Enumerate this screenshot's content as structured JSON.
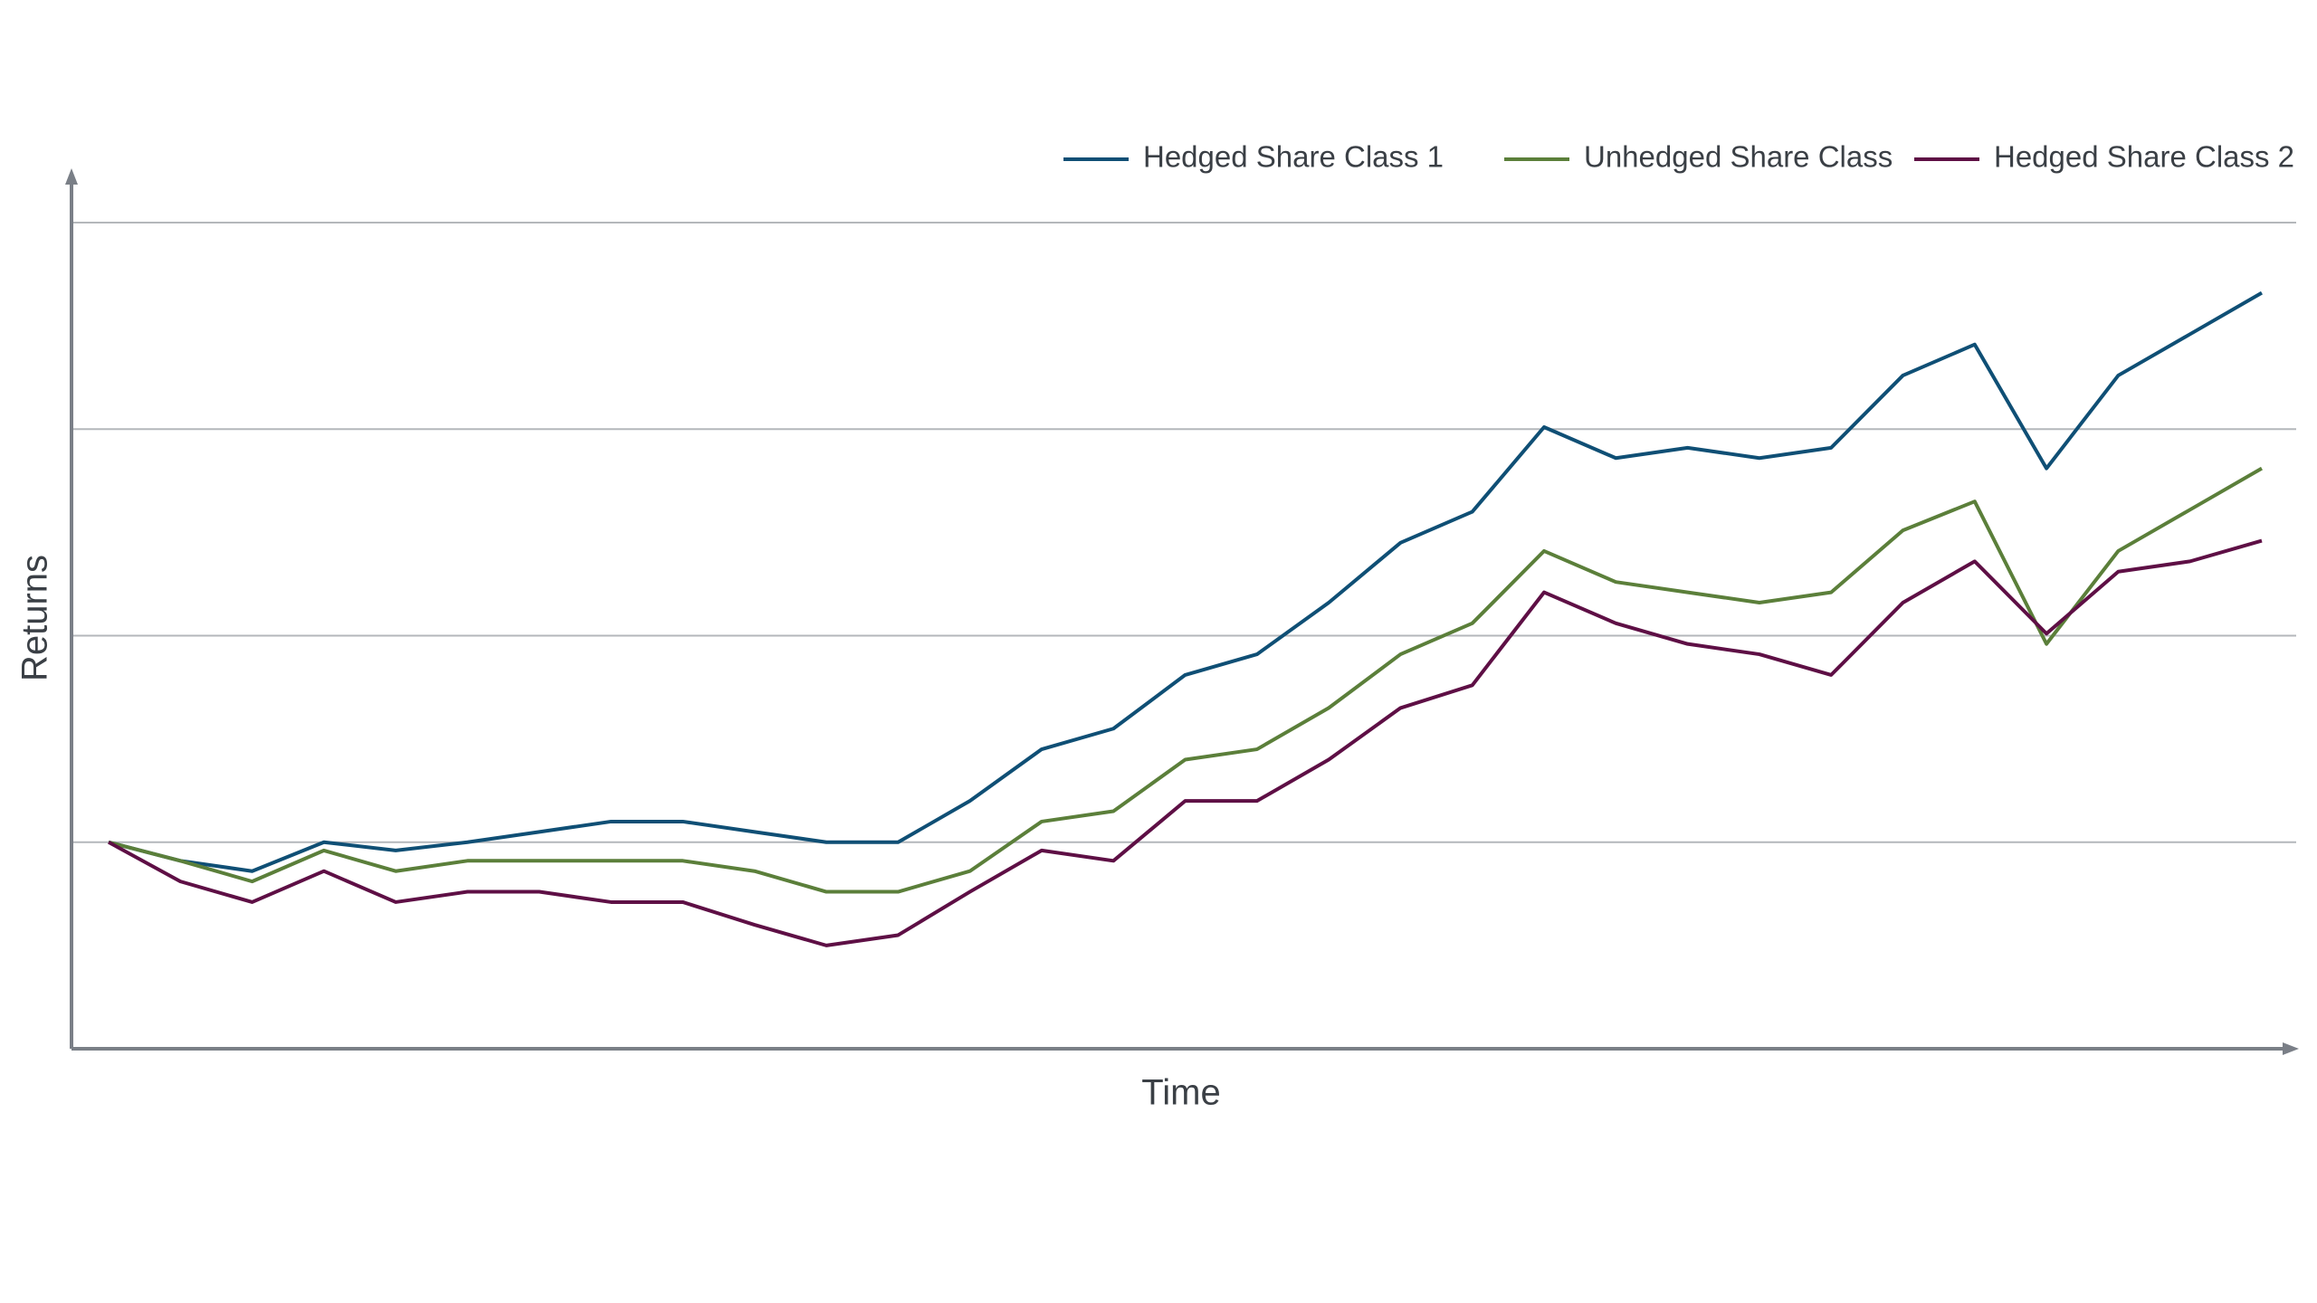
{
  "chart_data": {
    "type": "line",
    "x_label": "Time",
    "y_label": "Returns",
    "categories": [
      null,
      null,
      null,
      null,
      null,
      null,
      null,
      null,
      null,
      null,
      null,
      null,
      null,
      null,
      null,
      null,
      null,
      null,
      null,
      null,
      null,
      null,
      null,
      null,
      null,
      null,
      null,
      null,
      null,
      null,
      null
    ],
    "ylim": [
      0,
      4.25
    ],
    "yticks": [
      1,
      2,
      3,
      4
    ],
    "grid": true,
    "legend": "top-right",
    "series": [
      {
        "name": "Hedged Share Class 1",
        "color": "#0f4f75",
        "values": [
          1.0,
          0.91,
          0.86,
          1.0,
          0.96,
          1.0,
          1.05,
          1.1,
          1.1,
          1.05,
          1.0,
          1.0,
          1.2,
          1.45,
          1.55,
          1.81,
          1.91,
          2.16,
          2.45,
          2.6,
          3.01,
          2.86,
          2.91,
          2.86,
          2.91,
          3.26,
          3.41,
          2.81,
          3.26,
          3.46,
          3.66
        ]
      },
      {
        "name": "Unhedged Share Class",
        "color": "#5b7f3a",
        "values": [
          1.0,
          0.91,
          0.81,
          0.96,
          0.86,
          0.91,
          0.91,
          0.91,
          0.91,
          0.86,
          0.76,
          0.76,
          0.86,
          1.1,
          1.15,
          1.4,
          1.45,
          1.65,
          1.91,
          2.06,
          2.41,
          2.26,
          2.21,
          2.16,
          2.21,
          2.51,
          2.65,
          1.96,
          2.41,
          2.61,
          2.81
        ]
      },
      {
        "name": "Hedged Share Class 2",
        "color": "#5e0f45",
        "values": [
          1.0,
          0.81,
          0.71,
          0.86,
          0.71,
          0.76,
          0.76,
          0.71,
          0.71,
          0.6,
          0.5,
          0.55,
          0.76,
          0.96,
          0.91,
          1.2,
          1.2,
          1.4,
          1.65,
          1.76,
          2.21,
          2.06,
          1.96,
          1.91,
          1.81,
          2.16,
          2.36,
          2.01,
          2.31,
          2.36,
          2.46
        ]
      }
    ]
  }
}
